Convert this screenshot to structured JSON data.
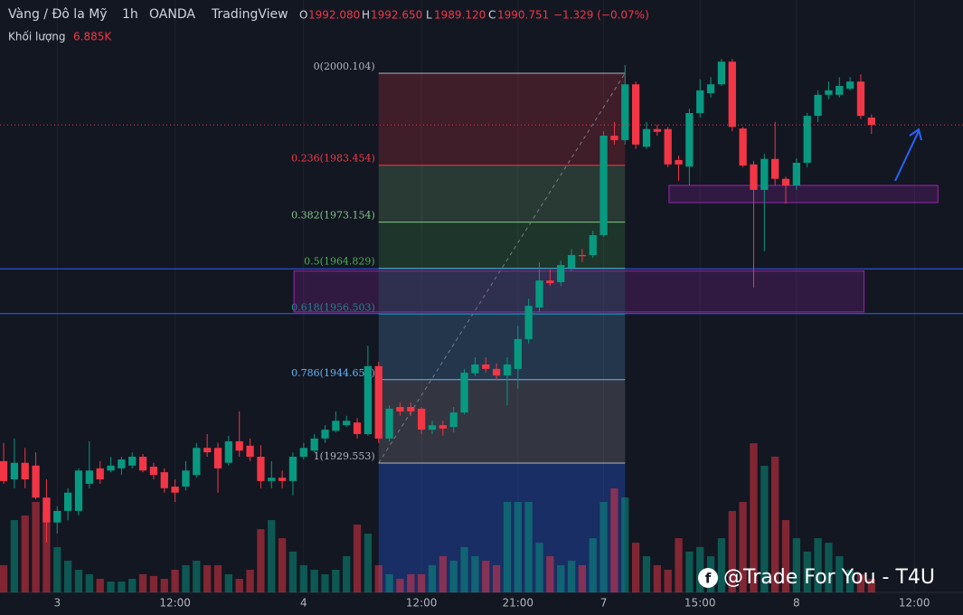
{
  "header": {
    "symbol": "Vàng / Đô la Mỹ",
    "interval": "1h",
    "broker": "OANDA",
    "platform": "TradingView",
    "o_label": "O",
    "o": "1992.080",
    "h_label": "H",
    "h": "1992.650",
    "l_label": "L",
    "l": "1989.120",
    "c_label": "C",
    "c": "1990.751",
    "change": "−1.329 (−0.07%)",
    "volume_label": "Khối lượng",
    "volume": "6.885K"
  },
  "watermark": "@Trade For You - T4U",
  "chart_data": {
    "type": "candlestick",
    "up_color": "#089981",
    "down_color": "#f23645",
    "x": [
      0,
      1,
      2,
      3,
      4,
      5,
      6,
      7,
      8,
      9,
      10,
      11,
      12,
      13,
      14,
      15,
      16,
      17,
      18,
      19,
      20,
      21,
      22,
      23,
      24,
      25,
      26,
      27,
      28,
      29,
      30,
      31,
      32,
      33,
      34,
      35,
      36,
      37,
      38,
      39,
      40,
      41,
      42,
      43,
      44,
      45,
      46,
      47,
      48,
      49,
      50,
      51,
      52,
      53,
      54,
      55,
      56,
      57,
      58,
      59,
      60,
      61,
      62,
      63,
      64,
      65,
      66,
      67,
      68,
      69,
      70,
      71,
      72,
      73,
      74,
      75,
      76,
      77,
      78,
      79,
      80,
      81
    ],
    "open": [
      1929.9,
      1926.6,
      1929.6,
      1929.1,
      1923.3,
      1918.8,
      1920.9,
      1920.9,
      1925.8,
      1928.6,
      1928.2,
      1928.6,
      1929.1,
      1930.7,
      1928.9,
      1927.9,
      1925.3,
      1925.3,
      1927.4,
      1932.3,
      1932.3,
      1929.6,
      1933.5,
      1932.7,
      1930.7,
      1926.3,
      1926.9,
      1926.3,
      1930.7,
      1931.8,
      1934.0,
      1935.4,
      1936.4,
      1936.9,
      1934.8,
      1947.1,
      1934.0,
      1939.7,
      1939.7,
      1939.4,
      1935.6,
      1936.4,
      1936.1,
      1938.7,
      1945.8,
      1947.4,
      1946.6,
      1945.4,
      1946.6,
      1952.0,
      1957.7,
      1962.6,
      1962.3,
      1964.9,
      1967.2,
      1967.2,
      1970.8,
      1988.8,
      1988.0,
      1998.1,
      1986.8,
      1990.0,
      1990.0,
      1984.4,
      1983.2,
      1992.9,
      1996.5,
      1998.1,
      2002.2,
      1990.1,
      1983.6,
      1979.0,
      1984.6,
      1981.0,
      1979.8,
      1983.9,
      1992.4,
      1996.2,
      1996.2,
      1997.3,
      1998.6,
      1992.08
    ],
    "high": [
      1933.2,
      1934.0,
      1932.3,
      1931.5,
      1926.6,
      1921.7,
      1925.0,
      1928.6,
      1933.5,
      1929.9,
      1930.7,
      1930.7,
      1931.5,
      1931.2,
      1929.6,
      1928.6,
      1926.6,
      1929.9,
      1933.2,
      1934.8,
      1933.2,
      1934.5,
      1938.9,
      1934.0,
      1932.8,
      1929.9,
      1928.2,
      1931.5,
      1933.2,
      1934.8,
      1936.4,
      1938.9,
      1938.1,
      1937.7,
      1950.8,
      1947.9,
      1940.0,
      1940.5,
      1940.5,
      1939.7,
      1937.2,
      1937.2,
      1939.7,
      1946.6,
      1948.7,
      1948.7,
      1947.6,
      1948.7,
      1954.4,
      1959.3,
      1965.9,
      1964.6,
      1966.2,
      1968.3,
      1968.3,
      1971.6,
      1989.6,
      1991.3,
      2001.6,
      1998.6,
      1991.3,
      1990.8,
      1990.4,
      1985.2,
      1993.7,
      1999.0,
      1999.4,
      2002.7,
      2002.7,
      1990.4,
      1984.2,
      1985.5,
      1991.3,
      1981.4,
      1984.7,
      1992.9,
      1997.0,
      1998.6,
      1999.4,
      1999.4,
      1999.9,
      1992.65
    ],
    "low": [
      1925.8,
      1925.0,
      1925.0,
      1923.0,
      1915.2,
      1916.8,
      1919.2,
      1920.1,
      1925.0,
      1925.8,
      1927.9,
      1927.4,
      1928.6,
      1927.9,
      1926.6,
      1924.2,
      1922.5,
      1924.6,
      1926.9,
      1930.7,
      1924.2,
      1929.1,
      1930.7,
      1929.9,
      1925.0,
      1925.0,
      1925.0,
      1923.7,
      1930.2,
      1931.5,
      1933.2,
      1935.1,
      1936.1,
      1934.0,
      1934.5,
      1933.2,
      1933.5,
      1938.1,
      1938.1,
      1934.8,
      1934.8,
      1934.5,
      1935.1,
      1938.4,
      1945.3,
      1945.9,
      1944.6,
      1940.0,
      1943.0,
      1951.2,
      1956.9,
      1961.6,
      1961.6,
      1964.3,
      1965.9,
      1966.7,
      1970.5,
      1987.2,
      1987.2,
      1986.4,
      1986.4,
      1988.8,
      1983.1,
      1980.6,
      1979.8,
      1992.1,
      1995.7,
      1997.8,
      1989.6,
      1983.1,
      1961.3,
      1967.9,
      1979.8,
      1976.5,
      1979.0,
      1983.1,
      1991.3,
      1995.4,
      1995.7,
      1997.0,
      1991.8,
      1989.12
    ],
    "close": [
      1926.3,
      1929.6,
      1926.6,
      1923.3,
      1918.8,
      1920.9,
      1924.2,
      1928.2,
      1928.2,
      1926.6,
      1929.1,
      1930.2,
      1930.7,
      1928.2,
      1927.4,
      1925.0,
      1924.2,
      1928.2,
      1932.3,
      1931.5,
      1928.6,
      1933.5,
      1931.8,
      1930.7,
      1926.3,
      1926.9,
      1926.3,
      1930.7,
      1932.3,
      1934.0,
      1935.6,
      1937.2,
      1937.2,
      1934.8,
      1947.1,
      1934.0,
      1939.4,
      1938.9,
      1938.9,
      1935.6,
      1936.4,
      1935.8,
      1938.7,
      1945.9,
      1947.4,
      1946.6,
      1945.4,
      1947.4,
      1952.0,
      1958.0,
      1962.6,
      1962.1,
      1965.4,
      1967.2,
      1967.0,
      1970.8,
      1988.8,
      1988.0,
      1998.1,
      1987.2,
      1990.0,
      1989.5,
      1983.6,
      1983.6,
      1992.9,
      1997.0,
      1998.1,
      2002.2,
      1990.4,
      1983.4,
      1979.0,
      1984.6,
      1981.0,
      1979.8,
      1983.9,
      1992.4,
      1996.2,
      1997.0,
      1997.8,
      1998.6,
      1992.4,
      1990.751
    ],
    "volume": [
      13.8,
      36.7,
      39.0,
      45.9,
      41.3,
      23.0,
      16.1,
      11.5,
      9.2,
      6.9,
      5.5,
      5.5,
      6.9,
      9.2,
      8.3,
      6.9,
      11.5,
      13.8,
      16.1,
      13.8,
      13.8,
      9.2,
      6.9,
      11.5,
      32.1,
      36.7,
      27.5,
      20.7,
      13.8,
      11.5,
      9.2,
      11.5,
      18.4,
      34.4,
      29.8,
      13.8,
      9.2,
      6.9,
      9.2,
      9.2,
      13.8,
      18.4,
      16.1,
      23.0,
      18.4,
      16.1,
      13.8,
      45.9,
      45.9,
      45.9,
      25.2,
      18.4,
      13.8,
      16.1,
      13.8,
      27.5,
      45.9,
      52.8,
      48.2,
      25.2,
      18.4,
      13.8,
      11.5,
      27.5,
      20.7,
      23.0,
      18.4,
      27.5,
      41.3,
      45.9,
      75.7,
      64.3,
      68.9,
      36.7,
      27.5,
      20.7,
      27.5,
      25.2,
      18.4,
      11.5,
      9.2,
      6.885
    ],
    "xlim": [
      -0.34,
      89.54
    ],
    "ylim": [
      1906.15,
      2013.36
    ],
    "volume_lim": [
      0,
      91.8
    ],
    "xticks": [
      {
        "value": 5,
        "label": "3"
      },
      {
        "value": 16,
        "label": "12:00"
      },
      {
        "value": 28,
        "label": "4"
      },
      {
        "value": 39,
        "label": "12:00"
      },
      {
        "value": 48,
        "label": "21:00"
      },
      {
        "value": 56,
        "label": "7"
      },
      {
        "value": 65,
        "label": "15:00"
      },
      {
        "value": 74,
        "label": "8"
      },
      {
        "value": 85,
        "label": "12:00"
      }
    ],
    "fib": {
      "x": [
        35,
        58
      ],
      "levels": [
        2000.104,
        1983.454,
        1973.154,
        1964.829,
        1956.503,
        1944.651,
        1929.553
      ],
      "value_labels": [
        "0(2000.104)",
        "0.236(1983.454)",
        "0.382(1973.154)",
        "0.5(1964.829)",
        "0.618(1956.503)",
        "0.786(1944.651)",
        "1(1929.553)"
      ],
      "colors": [
        "#b2b5be",
        "#f23645",
        "#81c784",
        "#4caf50",
        "#089981",
        "#64b5f6",
        "#b2b5be"
      ]
    },
    "hlines": [
      1964.7,
      1956.6
    ],
    "hline_color": "#2962ff",
    "zones": [
      {
        "x": [
          27.1,
          80.3
        ],
        "y": [
          1956.9,
          1964.3
        ]
      },
      {
        "x": [
          62.1,
          87.2
        ],
        "y": [
          1976.7,
          1979.8
        ]
      }
    ],
    "zone_color": "#9c27b0"
  }
}
